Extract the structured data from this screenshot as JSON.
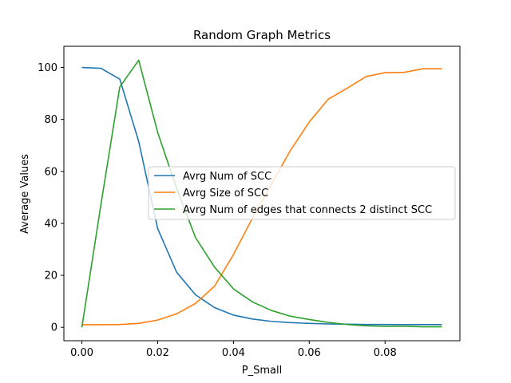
{
  "chart_data": {
    "type": "line",
    "title": "Random Graph Metrics",
    "xlabel": "P_Small",
    "ylabel": "Average Values",
    "xlim": [
      -0.00475,
      0.09975
    ],
    "ylim": [
      -5.15,
      108.15
    ],
    "xticks": [
      0.0,
      0.02,
      0.04,
      0.06,
      0.08
    ],
    "xtick_labels": [
      "0.00",
      "0.02",
      "0.04",
      "0.06",
      "0.08"
    ],
    "yticks": [
      0,
      20,
      40,
      60,
      80,
      100
    ],
    "ytick_labels": [
      "0",
      "20",
      "40",
      "60",
      "80",
      "100"
    ],
    "grid": false,
    "legend_position": "center",
    "x": [
      0.0,
      0.005,
      0.01,
      0.015,
      0.02,
      0.025,
      0.03,
      0.035,
      0.04,
      0.045,
      0.05,
      0.055,
      0.06,
      0.065,
      0.07,
      0.075,
      0.08,
      0.085,
      0.09,
      0.095
    ],
    "series": [
      {
        "name": "Avrg Num of SCC",
        "color": "#1f77b4",
        "values": [
          100,
          99.7,
          95.5,
          71.5,
          38,
          21.2,
          12.5,
          7.6,
          4.7,
          3.2,
          2.3,
          1.8,
          1.5,
          1.3,
          1.2,
          1.1,
          1.1,
          1.05,
          1.05,
          1.05
        ]
      },
      {
        "name": "Avrg Size of SCC",
        "color": "#ff7f0e",
        "values": [
          1,
          1,
          1.1,
          1.5,
          2.8,
          5.2,
          9.2,
          15.8,
          28,
          42,
          55,
          68,
          79,
          87.8,
          92,
          96.5,
          98,
          98.1,
          99.5,
          99.5
        ]
      },
      {
        "name": "Avrg Num of edges that connects 2 distinct SCC",
        "color": "#2ca02c",
        "values": [
          0,
          47,
          92.5,
          102.8,
          75,
          53.5,
          34.5,
          23.2,
          14.8,
          9.8,
          6.5,
          4.3,
          3,
          1.9,
          1.1,
          0.6,
          0.4,
          0.4,
          0.2,
          0.2
        ]
      }
    ]
  }
}
